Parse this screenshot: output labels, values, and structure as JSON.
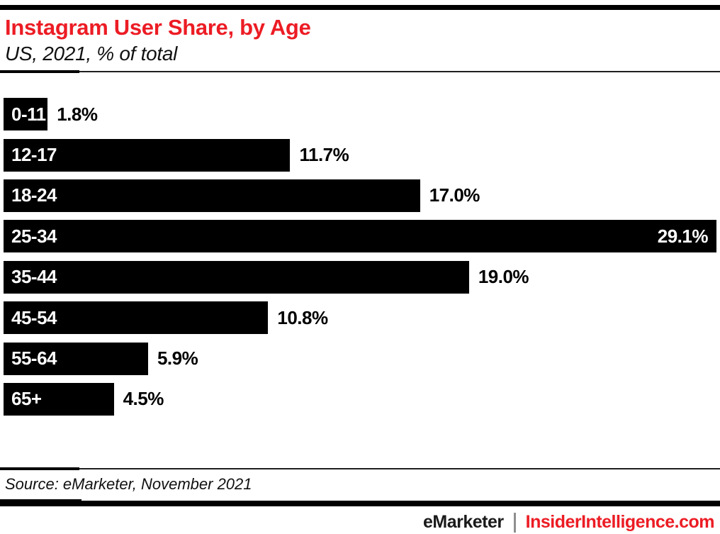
{
  "page": {
    "background": "#ffffff",
    "accent_red": "#EC1C24",
    "bar_black": "#000000"
  },
  "header": {
    "title": "Instagram User Share, by Age",
    "subtitle": "US, 2021, % of total"
  },
  "chart_data": {
    "type": "bar",
    "orientation": "horizontal",
    "title": "Instagram User Share, by Age",
    "subtitle": "US, 2021, % of total",
    "categories": [
      "0-11",
      "12-17",
      "18-24",
      "25-34",
      "35-44",
      "45-54",
      "55-64",
      "65+"
    ],
    "values": [
      1.8,
      11.7,
      17.0,
      29.1,
      19.0,
      10.8,
      5.9,
      4.5
    ],
    "value_labels": [
      "1.8%",
      "11.7%",
      "17.0%",
      "29.1%",
      "19.0%",
      "10.8%",
      "5.9%",
      "4.5%"
    ],
    "xlabel": "",
    "ylabel": "",
    "xlim": [
      0,
      29.1
    ],
    "grid": false,
    "legend": false,
    "bar_color": "#000000",
    "category_label_color": "#ffffff",
    "value_label_color": "#000000",
    "inside_value_index": 3
  },
  "source": {
    "text": "Source: eMarketer, November 2021"
  },
  "footer": {
    "brand": "eMarketer",
    "separator": "|",
    "site": "InsiderIntelligence.com"
  }
}
